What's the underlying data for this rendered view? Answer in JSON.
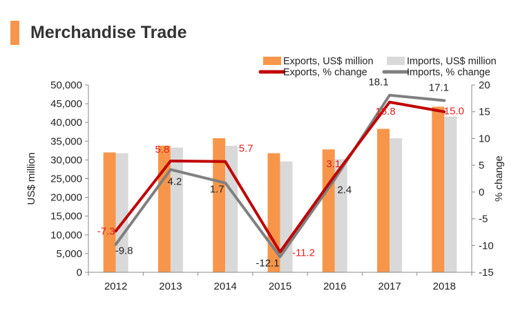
{
  "header": {
    "title": "Merchandise Trade"
  },
  "colors": {
    "accent": "#F7964A",
    "exports_bar": "#F7964A",
    "imports_bar": "#D9D9D9",
    "exports_line": "#C00000",
    "imports_line": "#808080",
    "exports_label": "#E02020"
  },
  "chart_data": {
    "type": "bar",
    "title": "Merchandise Trade",
    "categories": [
      "2012",
      "2013",
      "2014",
      "2015",
      "2016",
      "2017",
      "2018"
    ],
    "ylabel": "US$ million",
    "ylim": [
      0,
      50000
    ],
    "yticks": [
      0,
      5000,
      10000,
      15000,
      20000,
      25000,
      30000,
      35000,
      40000,
      45000,
      50000
    ],
    "ytick_labels": [
      "0",
      "5,000",
      "10,000",
      "15,000",
      "20,000",
      "25,000",
      "30,000",
      "35,000",
      "40,000",
      "45,000",
      "50,000"
    ],
    "y2label": "% change",
    "y2lim": [
      -15,
      20
    ],
    "y2ticks": [
      -15,
      -10,
      -5,
      0,
      5,
      10,
      15,
      20
    ],
    "y2tick_labels": [
      "-15",
      "-10",
      "-5",
      "0",
      "5",
      "10",
      "15",
      "20"
    ],
    "grid": false,
    "legend_position": "top-right",
    "series": [
      {
        "name": "Exports, US$ million",
        "type": "bar",
        "axis": "left",
        "values": [
          32000,
          33800,
          35800,
          31800,
          32800,
          38300,
          44200
        ]
      },
      {
        "name": "Imports, US$ million",
        "type": "bar",
        "axis": "left",
        "values": [
          31800,
          33300,
          33800,
          29600,
          30200,
          35800,
          41600
        ]
      },
      {
        "name": "Exports, % change",
        "type": "line",
        "axis": "right",
        "values": [
          -7.3,
          5.8,
          5.7,
          -11.2,
          3.1,
          16.8,
          15.0
        ],
        "labels": [
          "-7.3",
          "5.8",
          "5.7",
          "-11.2",
          "3.1",
          "16.8",
          "15.0"
        ]
      },
      {
        "name": "Imports, % change",
        "type": "line",
        "axis": "right",
        "values": [
          -9.8,
          4.2,
          1.7,
          -12.1,
          2.4,
          18.1,
          17.1
        ],
        "labels": [
          "-9.8",
          "4.2",
          "1.7",
          "-12.1",
          "2.4",
          "18.1",
          "17.1"
        ]
      }
    ]
  }
}
